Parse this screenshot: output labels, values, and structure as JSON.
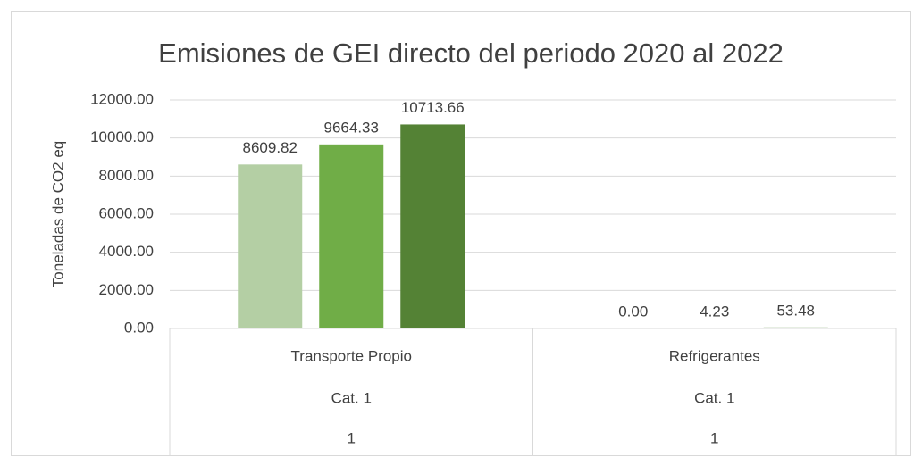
{
  "chart_data": {
    "type": "bar",
    "title": "Emisiones de GEI directo del periodo 2020 al 2022",
    "y_label": "Toneladas de CO2 eq",
    "categories": [
      [
        "Transporte Propio",
        "Cat. 1",
        "1"
      ],
      [
        "Refrigerantes",
        "Cat. 1",
        "1"
      ]
    ],
    "series": [
      {
        "color": "#b4cfa4",
        "values": [
          8609.82,
          0
        ],
        "value_labels": [
          "8609.82",
          "0.00"
        ]
      },
      {
        "color": "#70ad47",
        "values": [
          9664.33,
          4.23
        ],
        "value_labels": [
          "9664.33",
          "4.23"
        ]
      },
      {
        "color": "#548235",
        "values": [
          10713.66,
          53.48
        ],
        "value_labels": [
          "10713.66",
          "53.48"
        ]
      }
    ],
    "ylim": [
      0,
      12000
    ],
    "yticks": [
      {
        "value": 0,
        "label": "0.00"
      },
      {
        "value": 2000,
        "label": "2000.00"
      },
      {
        "value": 4000,
        "label": "4000.00"
      },
      {
        "value": 6000,
        "label": "6000.00"
      },
      {
        "value": 8000,
        "label": "8000.00"
      },
      {
        "value": 10000,
        "label": "10000.00"
      },
      {
        "value": 12000,
        "label": "12000.00"
      }
    ],
    "grid": true
  }
}
